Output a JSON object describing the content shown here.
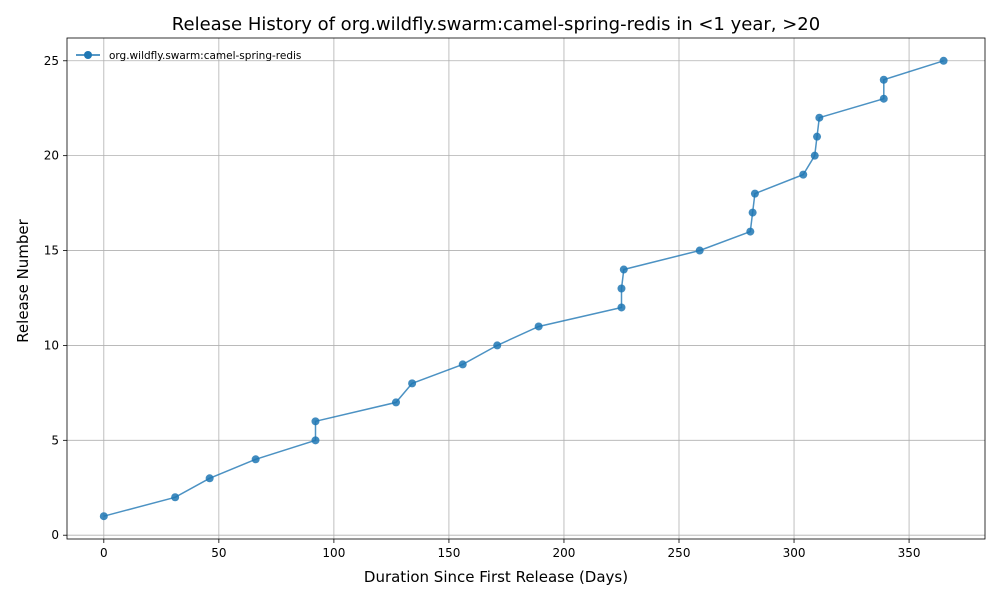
{
  "chart_data": {
    "type": "line",
    "title": "Release History of org.wildfly.swarm:camel-spring-redis in <1 year, >20",
    "xlabel": "Duration Since First Release (Days)",
    "ylabel": "Release Number",
    "xlim": [
      -16,
      383
    ],
    "ylim": [
      -0.2,
      26.2
    ],
    "xticks": [
      0,
      50,
      100,
      150,
      200,
      250,
      300,
      350
    ],
    "yticks": [
      0,
      5,
      10,
      15,
      20,
      25
    ],
    "grid": true,
    "legend_position": "upper-left",
    "series": [
      {
        "name": "org.wildfly.swarm:camel-spring-redis",
        "color": "#1f77b4",
        "marker": "circle",
        "x": [
          0,
          31,
          46,
          66,
          92,
          92,
          127,
          134,
          156,
          171,
          189,
          225,
          225,
          226,
          259,
          281,
          282,
          283,
          304,
          309,
          310,
          311,
          339,
          339,
          365
        ],
        "y": [
          1,
          2,
          3,
          4,
          5,
          6,
          7,
          8,
          9,
          10,
          11,
          12,
          13,
          14,
          15,
          16,
          17,
          18,
          19,
          20,
          21,
          22,
          23,
          24,
          25
        ]
      }
    ]
  }
}
